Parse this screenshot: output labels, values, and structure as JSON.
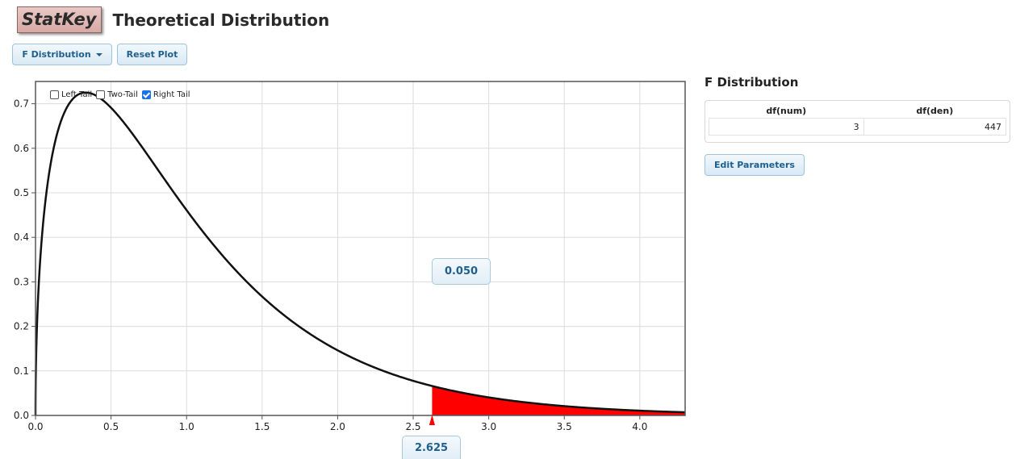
{
  "header": {
    "logo": "StatKey",
    "title": "Theoretical Distribution"
  },
  "toolbar": {
    "distribution_label": "F Distribution",
    "reset_label": "Reset Plot"
  },
  "tails": {
    "left": {
      "label": "Left Tail",
      "checked": false
    },
    "two": {
      "label": "Two-Tail",
      "checked": false
    },
    "right": {
      "label": "Right Tail",
      "checked": true
    }
  },
  "chart_data": {
    "type": "area",
    "distribution": "F",
    "df_num": 3,
    "df_den": 447,
    "xlim": [
      0,
      4.3
    ],
    "ylim": [
      0,
      0.75
    ],
    "x_ticks": [
      "0.0",
      "0.5",
      "1.0",
      "1.5",
      "2.0",
      "2.5",
      "3.0",
      "3.5",
      "4.0"
    ],
    "y_ticks": [
      "0.0",
      "0.1",
      "0.2",
      "0.3",
      "0.4",
      "0.5",
      "0.6",
      "0.7"
    ],
    "grid": true,
    "shaded_region": {
      "tail": "right",
      "from": 2.625,
      "to": 4.3,
      "color": "#ff0000"
    },
    "curve_color": "#111111",
    "critical_value": "2.625",
    "tail_probability": "0.050"
  },
  "side_panel": {
    "title": "F Distribution",
    "columns": [
      "df(num)",
      "df(den)"
    ],
    "values": [
      "3",
      "447"
    ],
    "edit_label": "Edit Parameters"
  },
  "colors": {
    "button_text": "#1f5f8e",
    "button_bg": "#e3eff8",
    "shade": "#ff0000",
    "logo_bg": "#dcb0ac"
  }
}
